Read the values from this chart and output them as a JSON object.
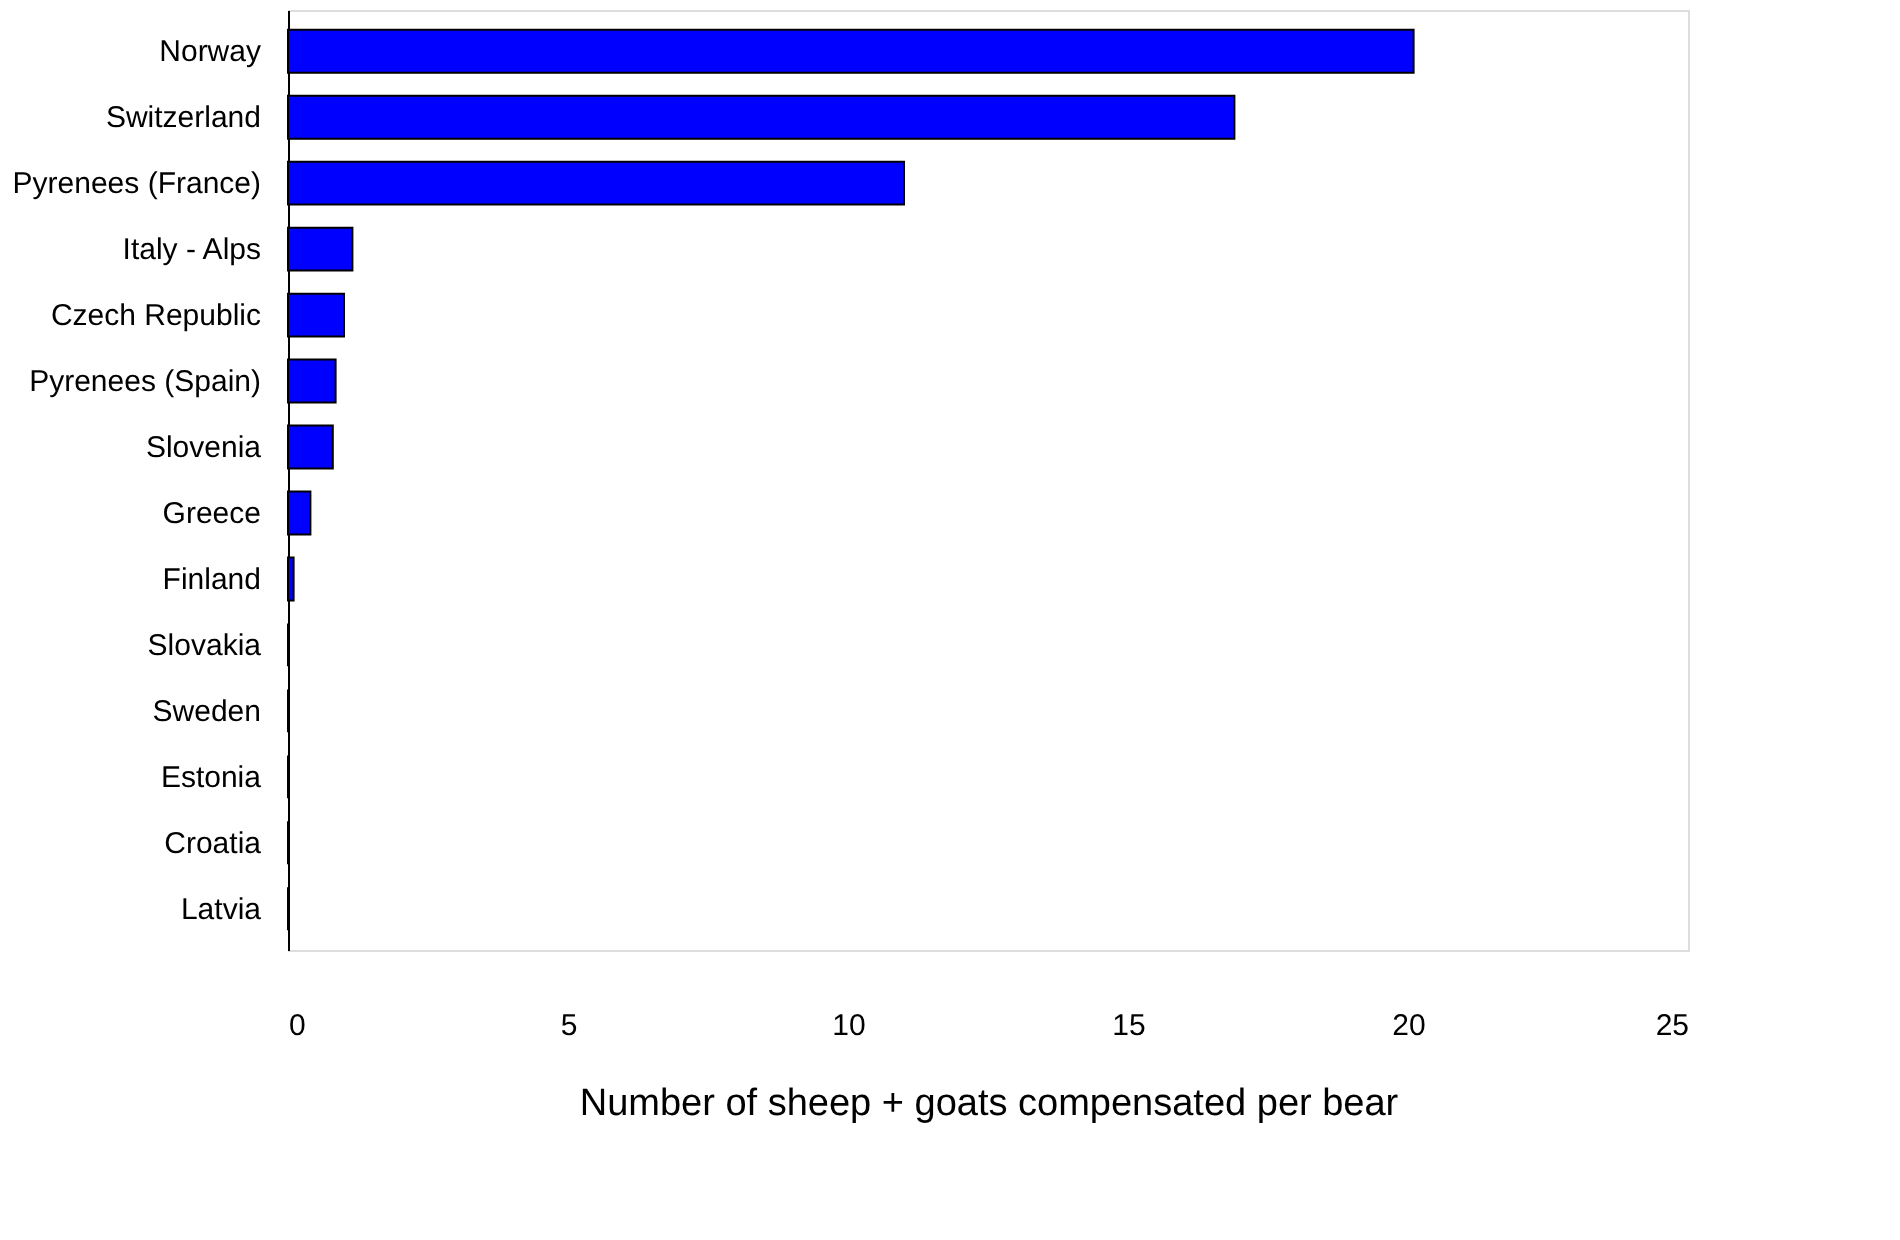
{
  "chart_data": {
    "type": "bar",
    "orientation": "horizontal",
    "xlabel": "Number of sheep + goats compensated per bear",
    "categories": [
      "Norway",
      "Switzerland",
      "Pyrenees (France)",
      "Italy - Alps",
      "Czech Republic",
      "Pyrenees (Spain)",
      "Slovenia",
      "Greece",
      "Finland",
      "Slovakia",
      "Sweden",
      "Estonia",
      "Croatia",
      "Latvia"
    ],
    "values": [
      20.1,
      16.9,
      11.0,
      1.15,
      1.0,
      0.85,
      0.8,
      0.4,
      0.1,
      0,
      0,
      0,
      0,
      0
    ],
    "color": "#0000ff",
    "xlim": [
      0,
      25
    ],
    "xticks": [
      0,
      5,
      10,
      15,
      20,
      25
    ],
    "grid": false
  }
}
